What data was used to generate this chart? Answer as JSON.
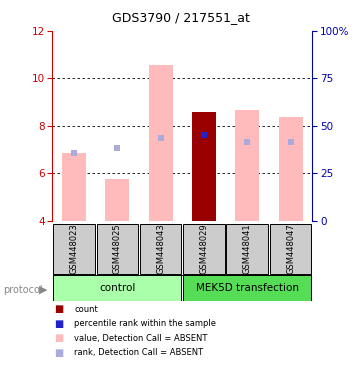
{
  "title": "GDS3790 / 217551_at",
  "samples": [
    "GSM448023",
    "GSM448025",
    "GSM448043",
    "GSM448029",
    "GSM448041",
    "GSM448047"
  ],
  "ylim_left": [
    4,
    12
  ],
  "ylim_right": [
    0,
    100
  ],
  "yticks_left": [
    4,
    6,
    8,
    10,
    12
  ],
  "yticks_right": [
    0,
    25,
    50,
    75,
    100
  ],
  "yticklabels_right": [
    "0",
    "25",
    "50",
    "75",
    "100%"
  ],
  "bar_bottom": 4,
  "pink_bar_top": [
    6.85,
    5.75,
    10.55,
    8.6,
    8.65,
    8.35
  ],
  "pink_color": "#FFBBBB",
  "dark_red_color": "#990000",
  "dark_red_bar_top": [
    null,
    null,
    null,
    8.6,
    null,
    null
  ],
  "light_blue_marker_y": [
    6.85,
    7.05,
    7.5,
    null,
    7.3,
    7.3
  ],
  "light_blue_color": "#AAAADD",
  "bright_blue_marker_y": [
    null,
    null,
    null,
    7.62,
    null,
    null
  ],
  "bright_blue_color": "#2222CC",
  "sample_box_color": "#CCCCCC",
  "left_axis_color": "#CC0000",
  "right_axis_color": "#0000AA",
  "group_ctrl_color": "#AAFFAA",
  "group_mek_color": "#55DD55",
  "legend_items": [
    {
      "label": "count",
      "color": "#990000"
    },
    {
      "label": "percentile rank within the sample",
      "color": "#2222CC"
    },
    {
      "label": "value, Detection Call = ABSENT",
      "color": "#FFBBBB"
    },
    {
      "label": "rank, Detection Call = ABSENT",
      "color": "#AAAADD"
    }
  ]
}
